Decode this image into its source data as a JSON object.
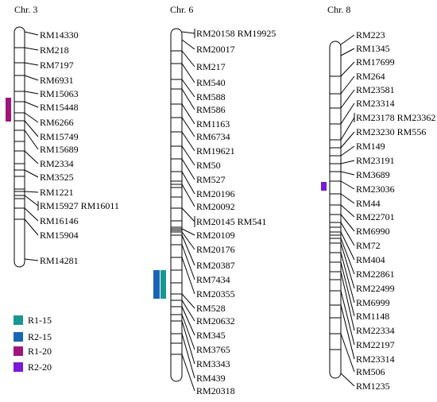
{
  "chromosomes": [
    {
      "title": "Chr. 3",
      "markers": [
        "RM14330",
        "RM218",
        "RM7197",
        "RM6931",
        "RM15063",
        "RM15448",
        "RM6266",
        "RM15749",
        "RM15689",
        "RM2334",
        "RM3525",
        "RM1221",
        "RM15927 RM16011",
        "RM16146",
        "RM15904",
        "RM14281"
      ],
      "qtl": [
        {
          "label": "R1-20",
          "color": "#a0157a"
        }
      ]
    },
    {
      "title": "Chr. 6",
      "markers": [
        "RM20158 RM19925",
        "RM20017",
        "RM217",
        "RM540",
        "RM588",
        "RM586",
        "RM1163",
        "RM6734",
        "RM19621",
        "RM50",
        "RM527",
        "RM20196",
        "RM20092",
        "RM20145 RM541",
        "RM20109",
        "RM20176",
        "RM20387",
        "RM7434",
        "RM20355",
        "RM528",
        "RM20632",
        "RM345",
        "RM3765",
        "RM3343",
        "RM439",
        "RM20318"
      ],
      "qtl": [
        {
          "label": "R2-15",
          "color": "#1a64b8"
        },
        {
          "label": "R1-15",
          "color": "#1a9690"
        }
      ]
    },
    {
      "title": "Chr. 8",
      "markers": [
        "RM223",
        "RM1345",
        "RM17699",
        "RM264",
        "RM23581",
        "RM23314",
        "RM23178 RM23362",
        "RM23230 RM556",
        "RM149",
        "RM23191",
        "RM3689",
        "RM23036",
        "RM44",
        "RM22701",
        "RM6990",
        "RM72",
        "RM404",
        "RM22861",
        "RM22499",
        "RM6999",
        "RM1148",
        "RM22334",
        "RM22197",
        "RM23314",
        "RM506",
        "RM1235"
      ],
      "qtl": [
        {
          "label": "R2-20",
          "color": "#7a1ad6"
        }
      ]
    }
  ],
  "legend": [
    {
      "label": "R1-15",
      "color": "#1a9690"
    },
    {
      "label": "R2-15",
      "color": "#1a64b8"
    },
    {
      "label": "R1-20",
      "color": "#a0157a"
    },
    {
      "label": "R2-20",
      "color": "#7a1ad6"
    }
  ]
}
